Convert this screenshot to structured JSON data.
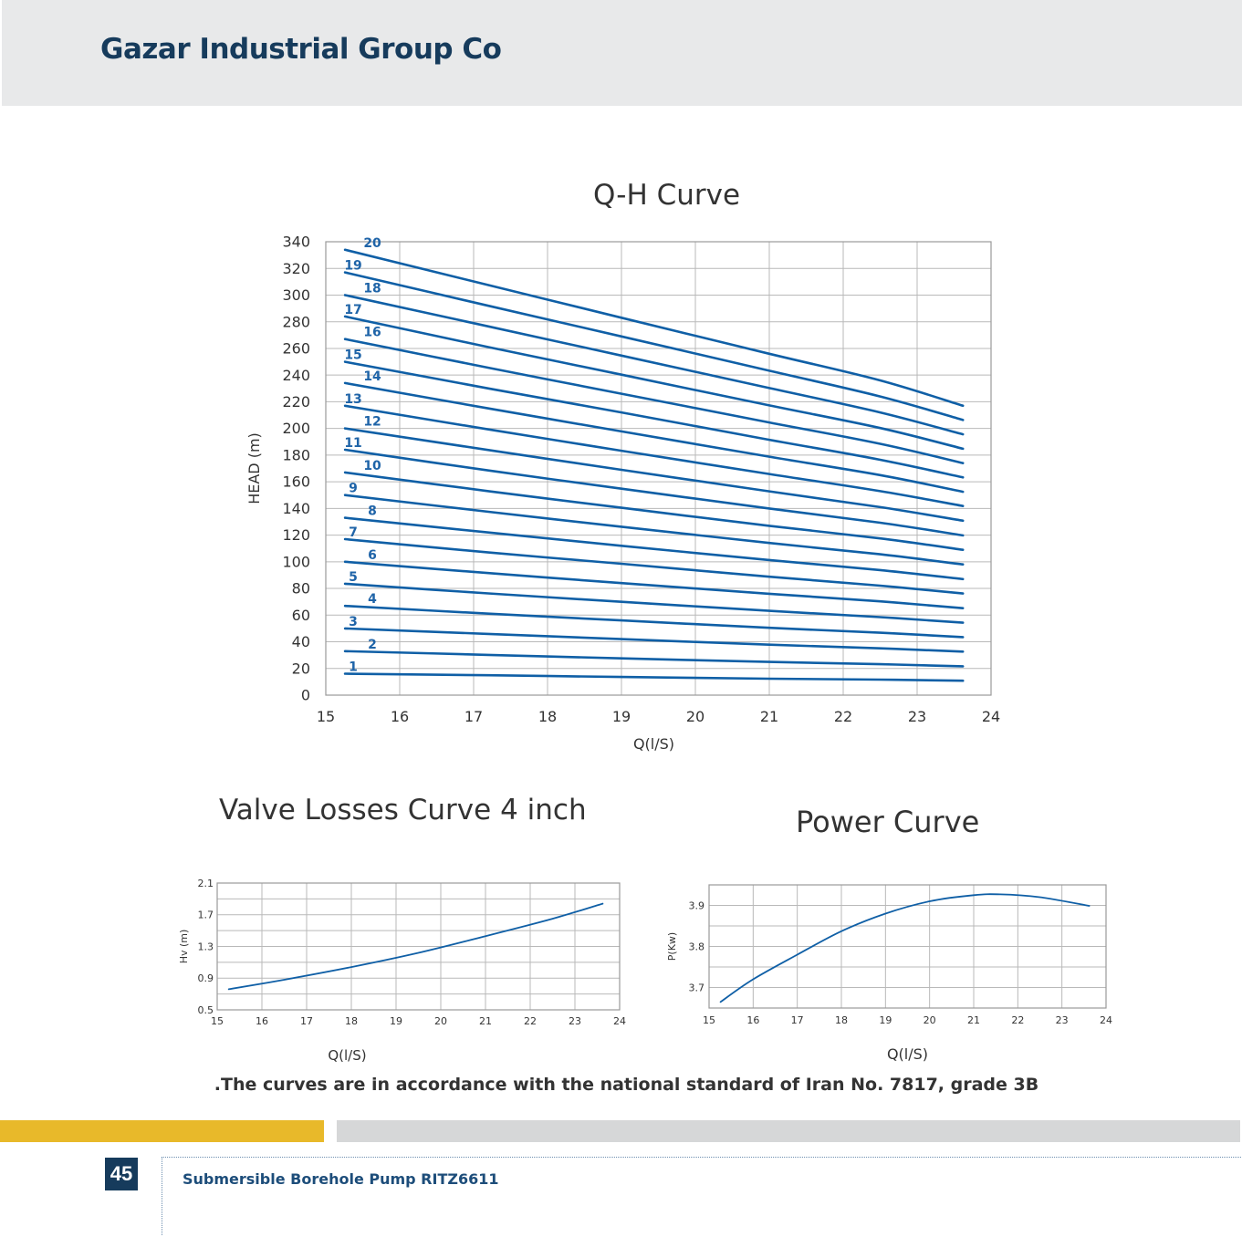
{
  "header": {
    "company": "Gazar Industrial Group Co"
  },
  "colors": {
    "curve": "#0f5fa6",
    "label": "#1f64a8",
    "grid": "#b9b9b9",
    "accent_yellow": "#e8b92a",
    "brand_navy": "#163b5c"
  },
  "chart_data": [
    {
      "id": "qh",
      "type": "line",
      "title": "Q-H Curve",
      "xlabel": "Q(l/S)",
      "ylabel": "HEAD (m)",
      "xlim": [
        15,
        24
      ],
      "ylim": [
        0,
        340
      ],
      "xticks": [
        "15",
        "16",
        "17",
        "18",
        "19",
        "20",
        "21",
        "22",
        "23",
        "24"
      ],
      "yticks": [
        "0",
        "20",
        "40",
        "60",
        "80",
        "100",
        "120",
        "140",
        "160",
        "180",
        "200",
        "220",
        "240",
        "260",
        "280",
        "300",
        "320",
        "340"
      ],
      "grid": true,
      "x": [
        15.26,
        17.2,
        19.0,
        21.0,
        22.5,
        23.62
      ],
      "series": [
        {
          "name": "1",
          "values": [
            16.1,
            14.9,
            13.6,
            12.3,
            11.6,
            10.8
          ]
        },
        {
          "name": "2",
          "values": [
            33.0,
            30.2,
            27.6,
            24.9,
            23.2,
            21.6
          ]
        },
        {
          "name": "3",
          "values": [
            50.0,
            45.9,
            42.0,
            37.8,
            35.1,
            32.6
          ]
        },
        {
          "name": "4",
          "values": [
            66.9,
            61.1,
            56.0,
            50.5,
            46.8,
            43.5
          ]
        },
        {
          "name": "5",
          "values": [
            83.5,
            76.3,
            70.0,
            63.2,
            58.5,
            54.3
          ]
        },
        {
          "name": "6",
          "values": [
            100.0,
            91.5,
            84.0,
            76.0,
            70.3,
            65.2
          ]
        },
        {
          "name": "7",
          "values": [
            117.0,
            107.0,
            98.5,
            88.8,
            82.1,
            76.2
          ]
        },
        {
          "name": "8",
          "values": [
            133.0,
            122.0,
            112.0,
            101.3,
            93.8,
            87.0
          ]
        },
        {
          "name": "9",
          "values": [
            150.0,
            137.5,
            126.3,
            114.1,
            105.6,
            98.0
          ]
        },
        {
          "name": "10",
          "values": [
            167.0,
            153.0,
            140.5,
            127.0,
            117.5,
            109.0
          ]
        },
        {
          "name": "11",
          "values": [
            184.0,
            168.5,
            154.8,
            140.0,
            129.3,
            119.8
          ]
        },
        {
          "name": "12",
          "values": [
            200.0,
            183.8,
            169.0,
            152.8,
            141.0,
            130.8
          ]
        },
        {
          "name": "13",
          "values": [
            217.0,
            199.3,
            183.3,
            165.8,
            153.0,
            141.8
          ]
        },
        {
          "name": "14",
          "values": [
            234.0,
            215.0,
            197.8,
            178.8,
            165.0,
            152.5
          ]
        },
        {
          "name": "15",
          "values": [
            250.0,
            230.0,
            212.0,
            191.5,
            176.5,
            163.3
          ]
        },
        {
          "name": "16",
          "values": [
            267.0,
            245.5,
            226.0,
            204.5,
            188.5,
            174.0
          ]
        },
        {
          "name": "17",
          "values": [
            284.0,
            261.0,
            240.3,
            217.3,
            200.3,
            184.8
          ]
        },
        {
          "name": "18",
          "values": [
            300.0,
            276.5,
            254.6,
            230.3,
            212.0,
            195.6
          ]
        },
        {
          "name": "19",
          "values": [
            317.0,
            292.0,
            269.0,
            243.3,
            224.0,
            206.3
          ]
        },
        {
          "name": "20",
          "values": [
            334.0,
            307.5,
            283.0,
            256.0,
            236.0,
            217.0
          ]
        }
      ]
    },
    {
      "id": "valve",
      "type": "line",
      "title": "Valve Losses Curve 4 inch",
      "xlabel": "Q(l/S)",
      "ylabel": "Hv (m)",
      "xlim": [
        15,
        24
      ],
      "ylim": [
        0.5,
        2.1
      ],
      "xticks": [
        "15",
        "16",
        "17",
        "18",
        "19",
        "20",
        "21",
        "22",
        "23",
        "24"
      ],
      "yticks": [
        "0.5",
        "0.9",
        "1.3",
        "1.7",
        "2.1"
      ],
      "grid": true,
      "x": [
        15.26,
        16.5,
        18.0,
        19.5,
        21.0,
        22.5,
        23.62
      ],
      "series": [
        {
          "values": [
            0.76,
            0.88,
            1.04,
            1.22,
            1.43,
            1.65,
            1.84
          ]
        }
      ]
    },
    {
      "id": "power",
      "type": "line",
      "title": "Power Curve",
      "xlabel": "Q(l/S)",
      "ylabel": "P(Kw)",
      "xlim": [
        15,
        24
      ],
      "ylim": [
        3.65,
        3.95
      ],
      "xticks": [
        "15",
        "16",
        "17",
        "18",
        "19",
        "20",
        "21",
        "22",
        "23",
        "24"
      ],
      "yticks": [
        "3.7",
        "3.8",
        "3.9"
      ],
      "grid": true,
      "x": [
        15.26,
        16.0,
        17.0,
        18.0,
        19.0,
        20.0,
        21.0,
        21.6,
        22.5,
        23.62
      ],
      "series": [
        {
          "values": [
            3.665,
            3.72,
            3.78,
            3.837,
            3.88,
            3.91,
            3.925,
            3.927,
            3.92,
            3.899
          ]
        }
      ]
    }
  ],
  "footnote": ".The curves are in accordance with the national standard of Iran No. 7817, grade 3B",
  "footer": {
    "page_number": "45",
    "product": "Submersible Borehole Pump RITZ6611"
  }
}
